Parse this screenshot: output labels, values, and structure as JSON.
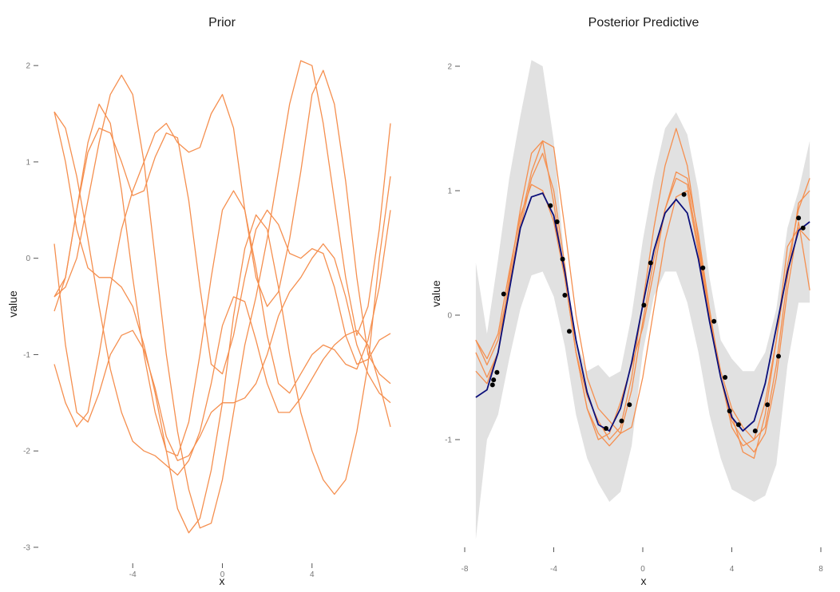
{
  "chart_data": [
    {
      "type": "line",
      "title": "Prior",
      "xlabel": "x",
      "ylabel": "value",
      "xlim": [
        -7.5,
        7.5
      ],
      "ylim": [
        -3.05,
        2.2
      ],
      "xticks": [
        -4,
        0,
        4
      ],
      "yticks": [
        -3,
        -2,
        -1,
        0,
        1,
        2
      ],
      "grid": false,
      "x": [
        -7.5,
        -7,
        -6.5,
        -6,
        -5.5,
        -5,
        -4.5,
        -4,
        -3.5,
        -3,
        -2.5,
        -2,
        -1.5,
        -1,
        -0.5,
        0,
        0.5,
        1,
        1.5,
        2,
        2.5,
        3,
        3.5,
        4,
        4.5,
        5,
        5.5,
        6,
        6.5,
        7,
        7.5
      ],
      "series": [
        {
          "values": [
            1.52,
            1.35,
            0.85,
            0.2,
            -0.5,
            -1.15,
            -1.6,
            -1.9,
            -2.0,
            -2.05,
            -2.15,
            -2.25,
            -2.1,
            -1.8,
            -1.3,
            -0.7,
            -0.4,
            -0.45,
            -0.85,
            -1.3,
            -1.6,
            -1.6,
            -1.45,
            -1.25,
            -1.05,
            -0.9,
            -0.8,
            -0.75,
            -0.9,
            -1.3,
            -1.75
          ]
        },
        {
          "values": [
            -0.4,
            -0.2,
            0.5,
            1.1,
            1.35,
            1.3,
            1.0,
            0.65,
            0.7,
            1.05,
            1.3,
            1.25,
            0.6,
            -0.3,
            -1.1,
            -1.2,
            -0.8,
            -0.2,
            0.3,
            0.5,
            0.35,
            0.05,
            0.0,
            0.1,
            0.05,
            -0.3,
            -0.8,
            -1.1,
            -1.05,
            -0.85,
            -0.78
          ]
        },
        {
          "values": [
            0.15,
            -0.9,
            -1.6,
            -1.7,
            -1.4,
            -1.0,
            -0.8,
            -0.75,
            -0.95,
            -1.35,
            -1.85,
            -2.1,
            -2.05,
            -1.85,
            -1.6,
            -1.5,
            -1.5,
            -1.45,
            -1.3,
            -1.0,
            -0.6,
            -0.35,
            -0.2,
            0.0,
            0.15,
            0.0,
            -0.4,
            -0.9,
            -1.2,
            -1.4,
            -1.5
          ]
        },
        {
          "values": [
            -0.55,
            -0.2,
            0.5,
            1.2,
            1.6,
            1.4,
            0.7,
            -0.2,
            -1.0,
            -1.6,
            -2.0,
            -2.05,
            -1.7,
            -1.0,
            -0.2,
            0.5,
            0.7,
            0.5,
            -0.1,
            -0.8,
            -1.3,
            -1.4,
            -1.2,
            -1.0,
            -0.9,
            -0.95,
            -1.1,
            -1.15,
            -0.85,
            -0.3,
            0.5
          ]
        },
        {
          "values": [
            -1.1,
            -1.5,
            -1.75,
            -1.6,
            -1.0,
            -0.3,
            0.3,
            0.7,
            1.0,
            1.3,
            1.4,
            1.2,
            1.1,
            1.15,
            1.5,
            1.7,
            1.35,
            0.5,
            -0.2,
            -0.5,
            -0.35,
            0.2,
            0.9,
            1.7,
            1.95,
            1.6,
            0.8,
            -0.2,
            -1.0,
            -1.2,
            -1.3
          ]
        },
        {
          "values": [
            1.52,
            1.0,
            0.3,
            -0.1,
            -0.2,
            -0.2,
            -0.3,
            -0.5,
            -0.9,
            -1.4,
            -2.0,
            -2.6,
            -2.85,
            -2.7,
            -2.2,
            -1.5,
            -0.6,
            0.1,
            0.45,
            0.3,
            -0.3,
            -1.0,
            -1.6,
            -2.0,
            -2.3,
            -2.45,
            -2.3,
            -1.8,
            -1.1,
            0.0,
            0.85
          ]
        },
        {
          "values": [
            -0.4,
            -0.3,
            0.0,
            0.6,
            1.2,
            1.7,
            1.9,
            1.7,
            1.0,
            0.0,
            -1.0,
            -1.8,
            -2.4,
            -2.8,
            -2.75,
            -2.3,
            -1.6,
            -0.9,
            -0.4,
            0.2,
            0.9,
            1.6,
            2.05,
            2.0,
            1.4,
            0.6,
            -0.2,
            -0.8,
            -0.5,
            0.3,
            1.4
          ]
        }
      ]
    },
    {
      "type": "line",
      "title": "Posterior Predictive",
      "xlabel": "x",
      "ylabel": "value",
      "xlim": [
        -8,
        8
      ],
      "ylim": [
        -1.85,
        2.1
      ],
      "xticks": [
        -8,
        -4,
        0,
        4,
        8
      ],
      "yticks": [
        -1,
        0,
        1,
        2
      ],
      "grid": false,
      "band_x": [
        -7.5,
        -7,
        -6.5,
        -6,
        -5.5,
        -5,
        -4.5,
        -4,
        -3.5,
        -3,
        -2.5,
        -2,
        -1.5,
        -1,
        -0.5,
        0,
        0.5,
        1,
        1.5,
        2,
        2.5,
        3,
        3.5,
        4,
        4.5,
        5,
        5.5,
        6,
        6.5,
        7,
        7.5
      ],
      "band_upper": [
        0.42,
        -0.15,
        0.45,
        1.1,
        1.6,
        2.05,
        2.0,
        1.4,
        0.4,
        -0.2,
        -0.45,
        -0.4,
        -0.5,
        -0.45,
        0.0,
        0.6,
        1.1,
        1.5,
        1.63,
        1.45,
        1.0,
        0.3,
        -0.2,
        -0.35,
        -0.45,
        -0.45,
        -0.3,
        0.05,
        0.7,
        1.0,
        1.4
      ],
      "band_lower": [
        -1.8,
        -1.0,
        -0.8,
        -0.35,
        0.05,
        0.32,
        0.35,
        0.15,
        -0.25,
        -0.8,
        -1.15,
        -1.35,
        -1.5,
        -1.42,
        -1.05,
        -0.3,
        0.15,
        0.35,
        0.35,
        0.1,
        -0.3,
        -0.8,
        -1.15,
        -1.4,
        -1.45,
        -1.5,
        -1.45,
        -1.2,
        -0.4,
        0.1,
        0.1
      ],
      "mean": {
        "x": [
          -7.5,
          -7,
          -6.5,
          -6,
          -5.5,
          -5,
          -4.5,
          -4,
          -3.5,
          -3,
          -2.5,
          -2,
          -1.5,
          -1,
          -0.5,
          0,
          0.5,
          1,
          1.5,
          2,
          2.5,
          3,
          3.5,
          4,
          4.5,
          5,
          5.5,
          6,
          6.5,
          7,
          7.5
        ],
        "values": [
          -0.66,
          -0.6,
          -0.3,
          0.2,
          0.7,
          0.95,
          0.98,
          0.8,
          0.35,
          -0.2,
          -0.62,
          -0.88,
          -0.93,
          -0.75,
          -0.38,
          0.08,
          0.52,
          0.82,
          0.93,
          0.82,
          0.45,
          -0.05,
          -0.5,
          -0.82,
          -0.93,
          -0.85,
          -0.55,
          -0.1,
          0.35,
          0.68,
          0.75
        ]
      },
      "samples_x": [
        -7.5,
        -7,
        -6.5,
        -6,
        -5.5,
        -5,
        -4.5,
        -4,
        -3.5,
        -3,
        -2.5,
        -2,
        -1.5,
        -1,
        -0.5,
        0,
        0.5,
        1,
        1.5,
        2,
        2.5,
        3,
        3.5,
        4,
        4.5,
        5,
        5.5,
        6,
        6.5,
        7,
        7.5
      ],
      "samples": [
        {
          "values": [
            -0.2,
            -0.35,
            -0.15,
            0.35,
            0.8,
            1.05,
            1.0,
            0.75,
            0.3,
            -0.3,
            -0.75,
            -1.0,
            -0.95,
            -0.7,
            -0.4,
            -0.1,
            0.35,
            0.85,
            1.15,
            1.1,
            0.65,
            0.05,
            -0.5,
            -0.9,
            -1.05,
            -1.0,
            -0.7,
            -0.2,
            0.4,
            0.85,
            1.1
          ]
        },
        {
          "values": [
            -0.45,
            -0.55,
            -0.3,
            0.3,
            0.85,
            1.3,
            1.4,
            0.9,
            0.3,
            -0.3,
            -0.65,
            -0.85,
            -1.0,
            -0.9,
            -0.5,
            0.1,
            0.7,
            1.2,
            1.5,
            1.2,
            0.6,
            0.0,
            -0.5,
            -0.85,
            -1.0,
            -1.1,
            -0.95,
            -0.5,
            0.2,
            0.75,
            0.2
          ]
        },
        {
          "values": [
            -0.2,
            -0.4,
            -0.2,
            0.25,
            0.75,
            1.15,
            1.4,
            1.35,
            0.7,
            0.0,
            -0.5,
            -0.75,
            -0.85,
            -0.95,
            -0.9,
            -0.5,
            0.05,
            0.6,
            0.95,
            1.0,
            0.5,
            -0.05,
            -0.5,
            -0.8,
            -1.1,
            -1.15,
            -0.8,
            -0.2,
            0.55,
            0.7,
            0.6
          ]
        },
        {
          "values": [
            -0.3,
            -0.5,
            -0.3,
            0.2,
            0.7,
            1.1,
            1.3,
            1.0,
            0.4,
            -0.3,
            -0.75,
            -0.95,
            -1.05,
            -0.95,
            -0.6,
            -0.05,
            0.45,
            0.85,
            1.1,
            1.05,
            0.55,
            0.0,
            -0.45,
            -0.75,
            -0.9,
            -1.0,
            -0.9,
            -0.4,
            0.3,
            0.9,
            1.0
          ]
        }
      ],
      "observations": {
        "x": [
          -6.75,
          -6.7,
          -6.55,
          -6.25,
          -4.15,
          -3.85,
          -3.6,
          -3.5,
          -3.3,
          -1.65,
          -0.95,
          -0.6,
          0.05,
          0.35,
          1.85,
          2.7,
          3.2,
          3.7,
          3.9,
          4.3,
          5.05,
          5.6,
          6.1,
          7.0,
          7.2
        ],
        "y": [
          -0.56,
          -0.52,
          -0.46,
          0.17,
          0.88,
          0.75,
          0.45,
          0.16,
          -0.13,
          -0.91,
          -0.85,
          -0.72,
          0.08,
          0.42,
          0.97,
          0.38,
          -0.05,
          -0.5,
          -0.77,
          -0.88,
          -0.93,
          -0.72,
          -0.33,
          0.78,
          0.7
        ]
      }
    }
  ]
}
